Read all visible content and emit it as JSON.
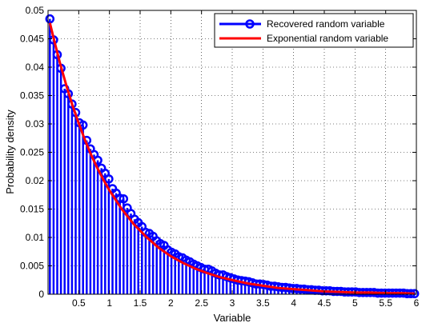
{
  "chart_data": {
    "type": "line",
    "title": "",
    "xlabel": "Variable",
    "ylabel": "Probability density",
    "xlim": [
      0,
      6
    ],
    "ylim": [
      0,
      0.05
    ],
    "grid": true,
    "legend_position": "top-right",
    "xticks": [
      0.5,
      1,
      1.5,
      2,
      2.5,
      3,
      3.5,
      4,
      4.5,
      5,
      5.5,
      6
    ],
    "xtick_labels": [
      "0.5",
      "1",
      "1.5",
      "2",
      "2.5",
      "3",
      "3.5",
      "4",
      "4.5",
      "5",
      "5.5",
      "6"
    ],
    "yticks": [
      0,
      0.005,
      0.01,
      0.015,
      0.02,
      0.025,
      0.03,
      0.035,
      0.04,
      0.045,
      0.05
    ],
    "ytick_labels": [
      "0",
      "0.005",
      "0.01",
      "0.015",
      "0.02",
      "0.025",
      "0.03",
      "0.035",
      "0.04",
      "0.045",
      "0.05"
    ],
    "series": [
      {
        "name": "Recovered random variable",
        "style": "stem",
        "color": "#0000ff",
        "x": [
          0.03,
          0.09,
          0.15,
          0.21,
          0.27,
          0.33,
          0.39,
          0.45,
          0.51,
          0.57,
          0.63,
          0.69,
          0.75,
          0.81,
          0.87,
          0.93,
          0.99,
          1.05,
          1.11,
          1.17,
          1.23,
          1.29,
          1.35,
          1.41,
          1.47,
          1.53,
          1.59,
          1.65,
          1.71,
          1.77,
          1.83,
          1.89,
          1.95,
          2.01,
          2.07,
          2.13,
          2.19,
          2.25,
          2.31,
          2.37,
          2.43,
          2.49,
          2.55,
          2.61,
          2.67,
          2.73,
          2.79,
          2.85,
          2.91,
          2.97,
          3.03,
          3.09,
          3.15,
          3.21,
          3.27,
          3.33,
          3.39,
          3.45,
          3.51,
          3.57,
          3.63,
          3.69,
          3.75,
          3.81,
          3.87,
          3.93,
          3.99,
          4.05,
          4.11,
          4.17,
          4.23,
          4.29,
          4.35,
          4.41,
          4.47,
          4.53,
          4.59,
          4.65,
          4.71,
          4.77,
          4.83,
          4.89,
          4.95,
          5.01,
          5.07,
          5.13,
          5.19,
          5.25,
          5.31,
          5.37,
          5.43,
          5.49,
          5.55,
          5.61,
          5.67,
          5.73,
          5.79,
          5.85,
          5.91,
          5.97
        ],
        "values": [
          0.0485,
          0.0448,
          0.0422,
          0.0398,
          0.0362,
          0.0353,
          0.0335,
          0.032,
          0.0302,
          0.0298,
          0.0271,
          0.0256,
          0.0246,
          0.0236,
          0.0222,
          0.0213,
          0.0203,
          0.0186,
          0.0178,
          0.0169,
          0.0168,
          0.0152,
          0.0142,
          0.0132,
          0.0126,
          0.0119,
          0.0109,
          0.0107,
          0.0102,
          0.0094,
          0.0089,
          0.0086,
          0.0078,
          0.0074,
          0.0071,
          0.0066,
          0.0064,
          0.006,
          0.0057,
          0.0053,
          0.005,
          0.0047,
          0.0044,
          0.0044,
          0.0041,
          0.0037,
          0.0034,
          0.0034,
          0.0031,
          0.0029,
          0.0027,
          0.0025,
          0.0024,
          0.0023,
          0.0022,
          0.002,
          0.0018,
          0.0018,
          0.0017,
          0.0016,
          0.0014,
          0.0014,
          0.0013,
          0.0012,
          0.0012,
          0.0011,
          0.001,
          0.001,
          0.0009,
          0.0009,
          0.0008,
          0.0008,
          0.0007,
          0.0007,
          0.0006,
          0.0006,
          0.0006,
          0.0005,
          0.0005,
          0.0005,
          0.0004,
          0.0004,
          0.0004,
          0.0004,
          0.0003,
          0.0003,
          0.0003,
          0.0003,
          0.0003,
          0.0002,
          0.0002,
          0.0002,
          0.0002,
          0.0002,
          0.0002,
          0.0002,
          0.0002,
          0.0001,
          0.0001,
          0.0001
        ]
      },
      {
        "name": "Exponential random variable",
        "style": "line",
        "color": "#ff0000",
        "x": [
          0.03,
          0.1,
          0.2,
          0.3,
          0.4,
          0.5,
          0.6,
          0.7,
          0.8,
          0.9,
          1.0,
          1.2,
          1.4,
          1.6,
          1.8,
          2.0,
          2.2,
          2.4,
          2.6,
          2.8,
          3.0,
          3.25,
          3.5,
          3.75,
          4.0,
          4.25,
          4.5,
          4.75,
          5.0,
          5.25,
          5.5,
          5.75,
          5.97
        ],
        "values": [
          0.0478,
          0.0447,
          0.0405,
          0.0367,
          0.0332,
          0.0301,
          0.0272,
          0.0246,
          0.0223,
          0.0202,
          0.0183,
          0.015,
          0.0123,
          0.0101,
          0.0082,
          0.0067,
          0.0055,
          0.0045,
          0.0037,
          0.003,
          0.0025,
          0.0019,
          0.0015,
          0.0011,
          0.0009,
          0.0007,
          0.0005,
          0.0004,
          0.0003,
          0.0003,
          0.0002,
          0.0002,
          0.0001
        ]
      }
    ]
  }
}
